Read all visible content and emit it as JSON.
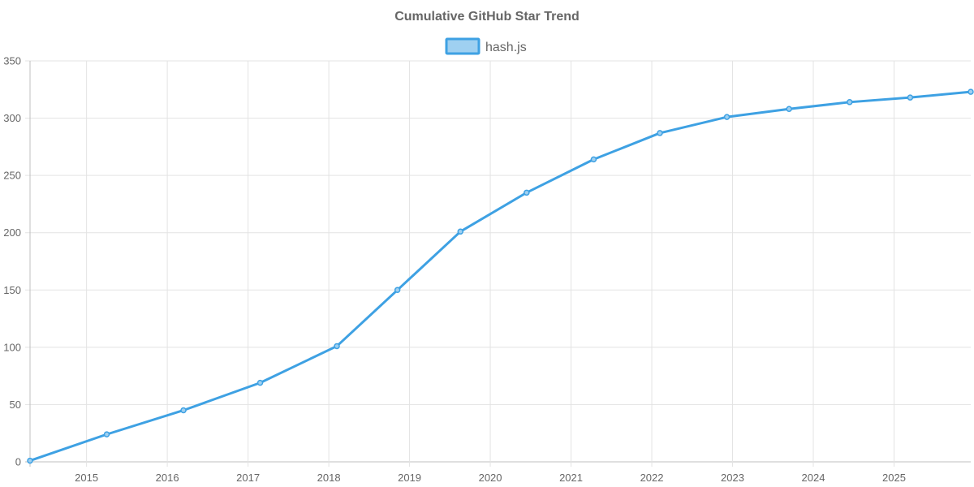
{
  "chart_data": {
    "type": "line",
    "title": "Cumulative GitHub Star Trend",
    "xlabel": "",
    "ylabel": "",
    "xlim": [
      2014.3,
      2025.95
    ],
    "ylim": [
      0,
      350
    ],
    "x_ticks": [
      2015,
      2016,
      2017,
      2018,
      2019,
      2020,
      2021,
      2022,
      2023,
      2024,
      2025
    ],
    "y_ticks": [
      0,
      50,
      100,
      150,
      200,
      250,
      300,
      350
    ],
    "grid": true,
    "legend_position": "top-center",
    "series": [
      {
        "name": "hash.js",
        "color": "#3ea1e3",
        "fill": "#9fd0f1",
        "x": [
          2014.3,
          2015.25,
          2016.2,
          2017.15,
          2018.1,
          2018.85,
          2019.63,
          2020.45,
          2021.28,
          2022.1,
          2022.93,
          2023.7,
          2024.45,
          2025.2,
          2025.95
        ],
        "y": [
          1,
          24,
          45,
          69,
          101,
          150,
          201,
          235,
          264,
          287,
          301,
          308,
          314,
          318,
          323
        ]
      }
    ]
  }
}
